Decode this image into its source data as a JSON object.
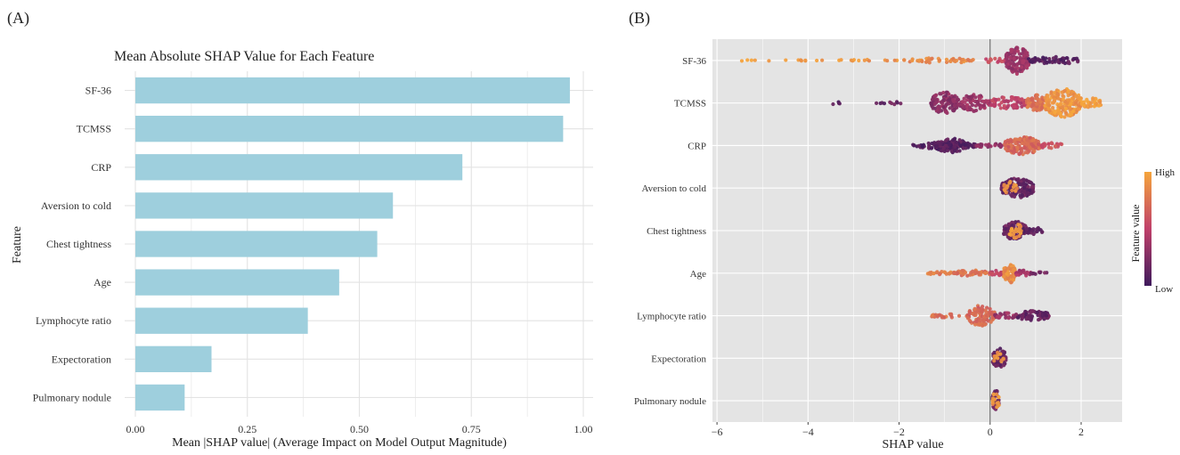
{
  "colors": {
    "bar_fill": "#9ecfdd",
    "panel_a_grid": "#e3e3e3",
    "panel_b_background": "#e4e4e4",
    "panel_b_grid": "#ffffff",
    "zero_line": "#555555",
    "gradient_low": "#3f1a5c",
    "gradient_mid": "#c0406a",
    "gradient_high": "#f5a53c"
  },
  "chart_data": [
    {
      "panel": "(A)",
      "type": "bar",
      "orientation": "horizontal",
      "title": "Mean Absolute SHAP Value for Each Feature",
      "xlabel": "Mean |SHAP value| (Average Impact on Model Output Magnitude)",
      "ylabel": "Feature",
      "xlim": [
        0,
        1.0
      ],
      "xticks": [
        0.0,
        0.25,
        0.5,
        0.75,
        1.0
      ],
      "xtick_labels": [
        "0.00",
        "0.25",
        "0.50",
        "0.75",
        "1.00"
      ],
      "categories": [
        "SF-36",
        "TCMSS",
        "CRP",
        "Aversion to cold",
        "Chest tightness",
        "Age",
        "Lymphocyte ratio",
        "Expectoration",
        "Pulmonary nodule"
      ],
      "values": [
        0.97,
        0.955,
        0.73,
        0.575,
        0.54,
        0.455,
        0.385,
        0.17,
        0.11
      ]
    },
    {
      "panel": "(B)",
      "type": "scatter",
      "subtype": "beeswarm",
      "xlabel": "SHAP value",
      "xlim": [
        -6.1,
        2.9
      ],
      "xticks": [
        -6,
        -4,
        -2,
        0,
        2
      ],
      "xtick_labels": [
        "−6",
        "−4",
        "−2",
        "0",
        "2"
      ],
      "legend": {
        "title": "Feature value",
        "high_label": "High",
        "low_label": "Low",
        "position": "right"
      },
      "features": [
        {
          "name": "SF-36",
          "segments": [
            {
              "from": -5.8,
              "to": -3.8,
              "width": 0.3,
              "value": 0.95,
              "n": 12
            },
            {
              "from": -3.7,
              "to": -2.0,
              "width": 0.35,
              "value": 0.92,
              "n": 14
            },
            {
              "from": -1.9,
              "to": -0.3,
              "width": 0.9,
              "value": 0.85,
              "n": 45
            },
            {
              "from": -0.2,
              "to": 0.35,
              "width": 0.8,
              "value": 0.55,
              "n": 16
            },
            {
              "from": 0.35,
              "to": 0.85,
              "width": 5.0,
              "value": 0.35,
              "n": 150
            },
            {
              "from": 0.85,
              "to": 2.0,
              "width": 1.4,
              "value": 0.1,
              "n": 60
            }
          ]
        },
        {
          "name": "TCMSS",
          "segments": [
            {
              "from": -3.5,
              "to": -3.3,
              "width": 0.5,
              "value": 0.1,
              "n": 4
            },
            {
              "from": -2.6,
              "to": -1.9,
              "width": 0.6,
              "value": 0.15,
              "n": 10
            },
            {
              "from": -1.3,
              "to": -0.7,
              "width": 4.0,
              "value": 0.3,
              "n": 120
            },
            {
              "from": -0.7,
              "to": 0.0,
              "width": 3.0,
              "value": 0.35,
              "n": 80
            },
            {
              "from": 0.0,
              "to": 0.8,
              "width": 2.2,
              "value": 0.5,
              "n": 70
            },
            {
              "from": 0.8,
              "to": 1.2,
              "width": 3.0,
              "value": 0.75,
              "n": 90
            },
            {
              "from": 1.2,
              "to": 2.0,
              "width": 5.2,
              "value": 0.92,
              "n": 200
            },
            {
              "from": 2.0,
              "to": 2.45,
              "width": 1.8,
              "value": 0.97,
              "n": 30
            }
          ]
        },
        {
          "name": "CRP",
          "segments": [
            {
              "from": -1.7,
              "to": -0.3,
              "width": 1.3,
              "value": 0.08,
              "n": 90
            },
            {
              "from": -1.2,
              "to": -0.5,
              "width": 2.6,
              "value": 0.1,
              "n": 90
            },
            {
              "from": -0.3,
              "to": 0.3,
              "width": 0.8,
              "value": 0.3,
              "n": 25
            },
            {
              "from": 0.3,
              "to": 1.1,
              "width": 3.2,
              "value": 0.7,
              "n": 160
            },
            {
              "from": 1.1,
              "to": 1.6,
              "width": 1.2,
              "value": 0.6,
              "n": 20
            }
          ]
        },
        {
          "name": "Aversion to cold",
          "segments": [
            {
              "from": 0.25,
              "to": 0.95,
              "width": 3.6,
              "value": 0.15,
              "n": 160
            },
            {
              "from": 0.3,
              "to": 0.6,
              "width": 2.5,
              "value": 0.9,
              "n": 18
            }
          ]
        },
        {
          "name": "Chest tightness",
          "segments": [
            {
              "from": 0.3,
              "to": 0.8,
              "width": 3.4,
              "value": 0.15,
              "n": 120
            },
            {
              "from": 0.8,
              "to": 1.15,
              "width": 1.4,
              "value": 0.1,
              "n": 25
            },
            {
              "from": 0.4,
              "to": 0.7,
              "width": 2.8,
              "value": 0.92,
              "n": 22
            }
          ]
        },
        {
          "name": "Age",
          "segments": [
            {
              "from": -1.4,
              "to": -0.8,
              "width": 0.6,
              "value": 0.8,
              "n": 20
            },
            {
              "from": -0.8,
              "to": 0.0,
              "width": 1.1,
              "value": 0.75,
              "n": 50
            },
            {
              "from": 0.0,
              "to": 0.3,
              "width": 1.0,
              "value": 0.5,
              "n": 20
            },
            {
              "from": 0.3,
              "to": 0.55,
              "width": 3.6,
              "value": 0.88,
              "n": 80
            },
            {
              "from": 0.55,
              "to": 0.9,
              "width": 1.2,
              "value": 0.4,
              "n": 25
            },
            {
              "from": 0.9,
              "to": 1.25,
              "width": 0.4,
              "value": 0.2,
              "n": 10
            }
          ]
        },
        {
          "name": "Lymphocyte ratio",
          "segments": [
            {
              "from": -1.3,
              "to": -0.5,
              "width": 0.7,
              "value": 0.75,
              "n": 25
            },
            {
              "from": -0.5,
              "to": 0.1,
              "width": 3.8,
              "value": 0.7,
              "n": 100
            },
            {
              "from": 0.1,
              "to": 0.6,
              "width": 1.0,
              "value": 0.35,
              "n": 35
            },
            {
              "from": 0.6,
              "to": 1.3,
              "width": 1.8,
              "value": 0.15,
              "n": 80
            }
          ]
        },
        {
          "name": "Expectoration",
          "segments": [
            {
              "from": 0.05,
              "to": 0.35,
              "width": 3.6,
              "value": 0.15,
              "n": 80
            },
            {
              "from": 0.0,
              "to": 0.3,
              "width": 2.2,
              "value": 0.92,
              "n": 12
            }
          ]
        },
        {
          "name": "Pulmonary nodule",
          "segments": [
            {
              "from": 0.05,
              "to": 0.2,
              "width": 3.8,
              "value": 0.2,
              "n": 60
            },
            {
              "from": 0.05,
              "to": 0.2,
              "width": 3.4,
              "value": 0.9,
              "n": 14
            }
          ]
        }
      ]
    }
  ]
}
